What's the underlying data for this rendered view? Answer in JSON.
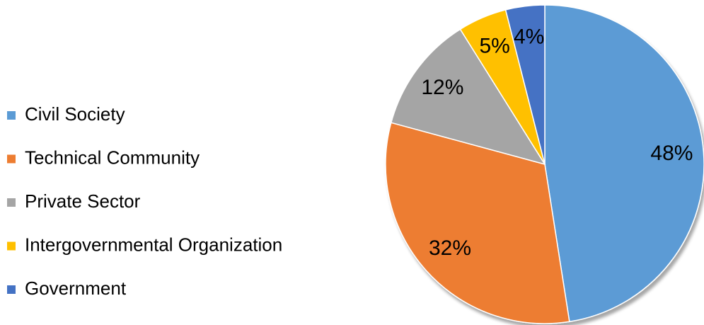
{
  "chart_data": {
    "type": "pie",
    "categories": [
      "Civil Society",
      "Technical Community",
      "Private Sector",
      "Intergovernmental Organization",
      "Government"
    ],
    "values": [
      48,
      32,
      12,
      5,
      4
    ],
    "value_labels": [
      "48%",
      "32%",
      "12%",
      "5%",
      "4%"
    ],
    "colors": [
      "#5b9bd5",
      "#ed7d31",
      "#a5a5a5",
      "#ffc000",
      "#4472c4"
    ],
    "legend": "left"
  }
}
